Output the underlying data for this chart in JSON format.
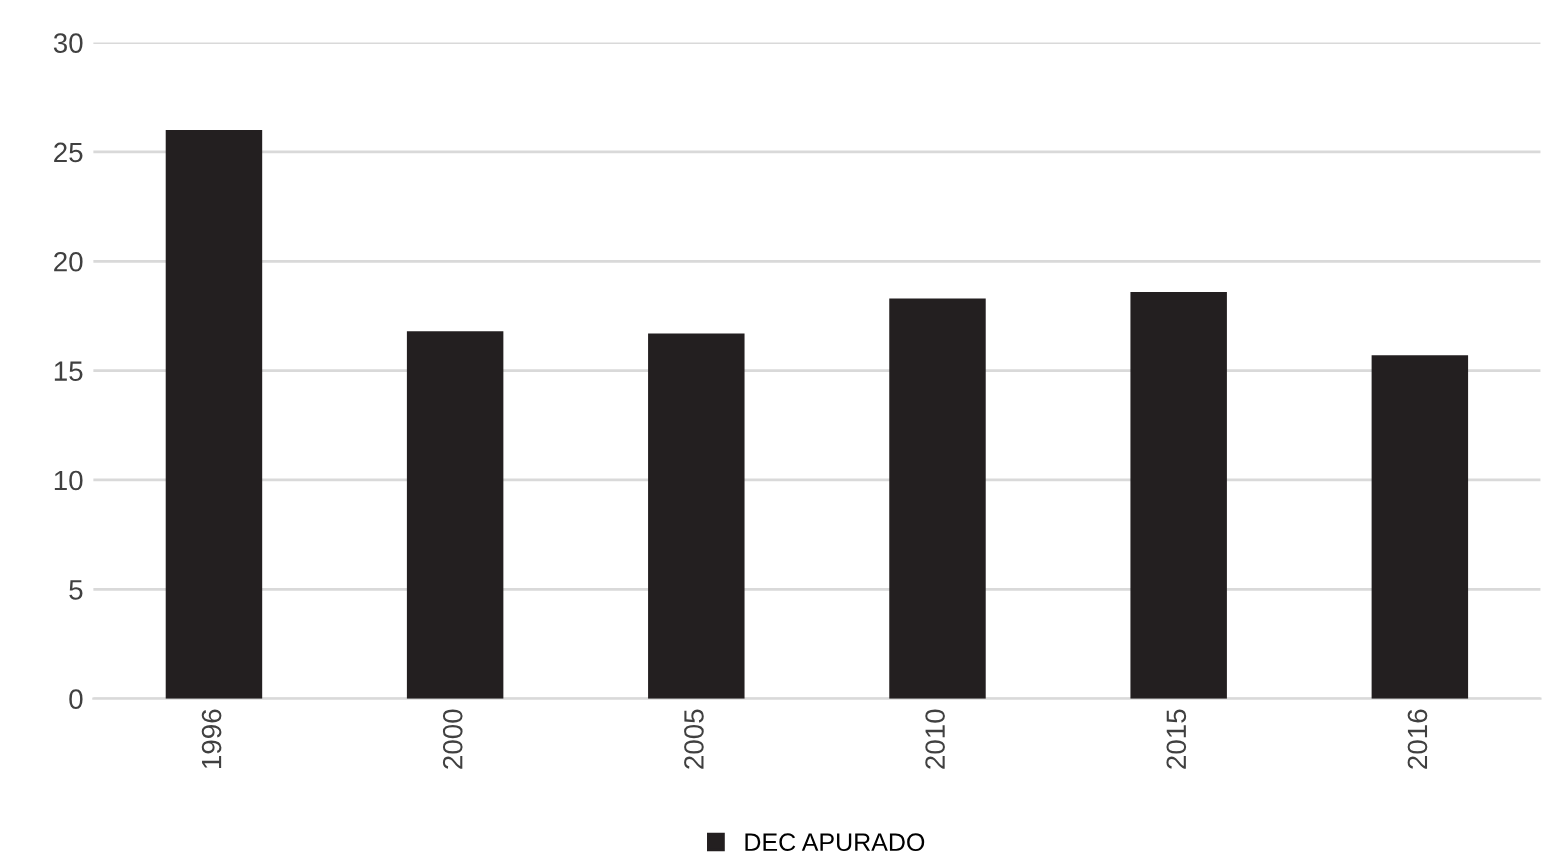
{
  "chart_data": {
    "type": "bar",
    "categories": [
      "1996",
      "2000",
      "2005",
      "2010",
      "2015",
      "2016"
    ],
    "series": [
      {
        "name": "DEC APURADO",
        "color": "#231f20",
        "values": [
          26.0,
          16.8,
          16.7,
          18.3,
          18.6,
          15.7
        ]
      }
    ],
    "ylim": [
      0,
      30
    ],
    "yticks": [
      0,
      5,
      10,
      15,
      20,
      25,
      30
    ],
    "grid": "y",
    "legend": "bottom"
  }
}
